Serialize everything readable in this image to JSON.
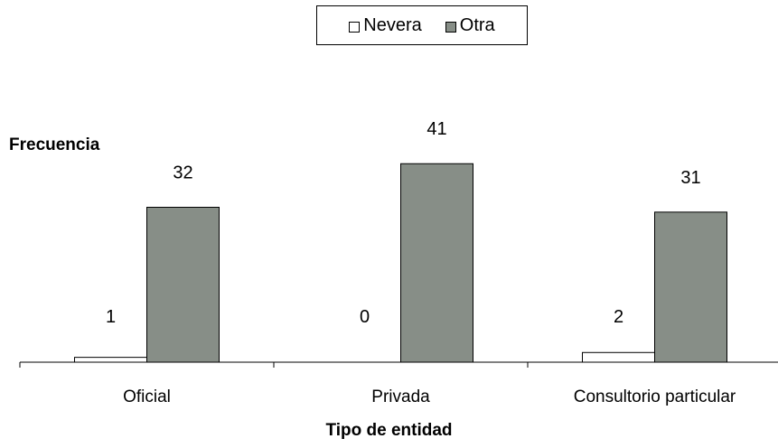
{
  "chart_data": {
    "type": "bar",
    "categories": [
      "Oficial",
      "Privada",
      "Consultorio particular"
    ],
    "series": [
      {
        "name": "Nevera",
        "values": [
          1,
          0,
          2
        ],
        "color": "#ffffff"
      },
      {
        "name": "Otra",
        "values": [
          32,
          41,
          31
        ],
        "color": "#878e87"
      }
    ],
    "data_labels": [
      [
        "1",
        "0",
        "2"
      ],
      [
        "32",
        "41",
        "31"
      ]
    ],
    "title": "",
    "xlabel": "Tipo de entidad",
    "ylabel": "Frecuencia",
    "ylim": [
      0,
      41
    ],
    "grid": false,
    "legend_position": "top-center"
  }
}
